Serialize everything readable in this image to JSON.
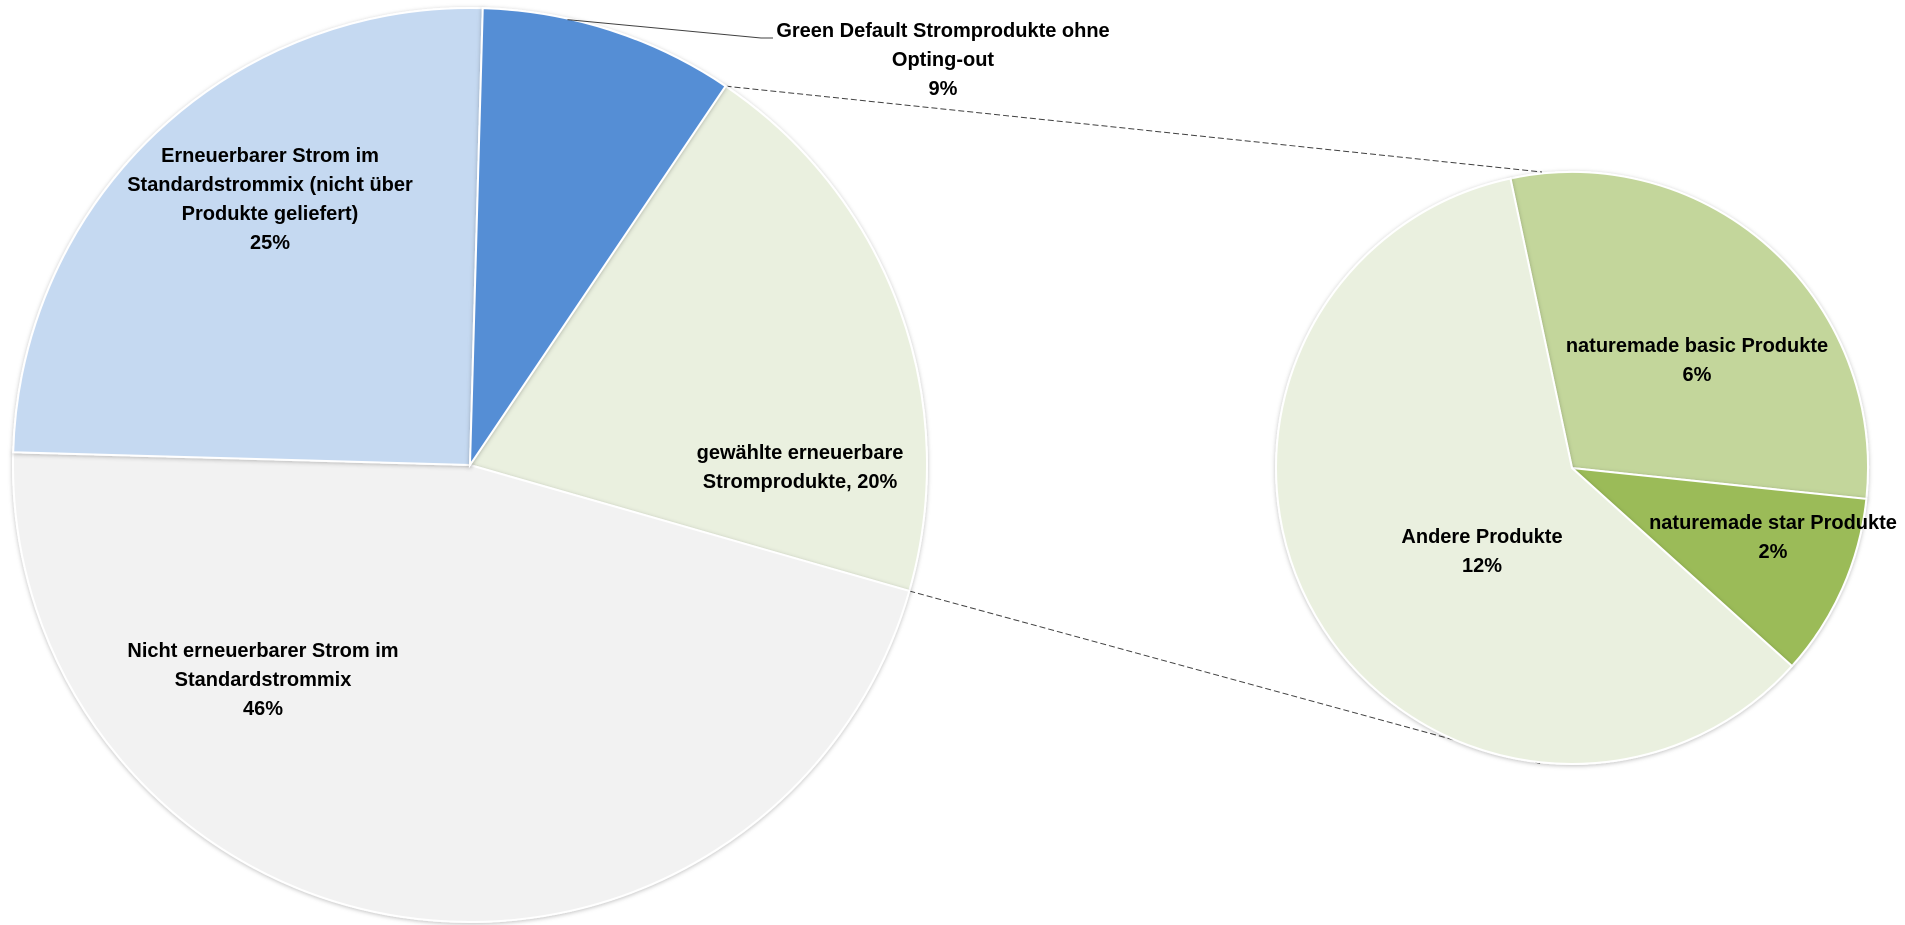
{
  "chart_data": {
    "type": "pie",
    "title": "",
    "main_pie": {
      "slices": [
        {
          "name": "gewählte erneuerbare Stromprodukte",
          "label_lines": [
            "gewählte erneuerbare",
            "Stromprodukte, 20%"
          ],
          "value": 20,
          "color": "#EAF0DF"
        },
        {
          "name": "Nicht erneuerbarer Strom im Standardstrommix",
          "label_lines": [
            "Nicht erneuerbarer Strom im",
            "Standardstrommix",
            "46%"
          ],
          "value": 46,
          "color": "#F2F2F2"
        },
        {
          "name": "Erneuerbarer Strom im Standardstrommix (nicht über Produkte geliefert)",
          "label_lines": [
            "Erneuerbarer Strom im",
            "Standardstrommix (nicht über",
            "Produkte geliefert)",
            "25%"
          ],
          "value": 25,
          "color": "#C5D9F1"
        },
        {
          "name": "Green Default Stromprodukte ohne Opting-out",
          "label_lines": [
            "Green Default Stromprodukte ohne",
            "Opting-out",
            "9%"
          ],
          "value": 9,
          "color": "#558ED5"
        }
      ]
    },
    "sub_pie": {
      "exploded_from": "gewählte erneuerbare Stromprodukte",
      "slices": [
        {
          "name": "naturemade basic Produkte",
          "label_lines": [
            "naturemade basic Produkte",
            "6%"
          ],
          "value": 6,
          "color": "#C3D69B"
        },
        {
          "name": "naturemade star Produkte",
          "label_lines": [
            "naturemade star Produkte",
            "2%"
          ],
          "value": 2,
          "color": "#9BBB59"
        },
        {
          "name": "Andere Produkte",
          "label_lines": [
            "Andere Produkte",
            "12%"
          ],
          "value": 12,
          "color": "#EAF0DF"
        }
      ]
    }
  }
}
